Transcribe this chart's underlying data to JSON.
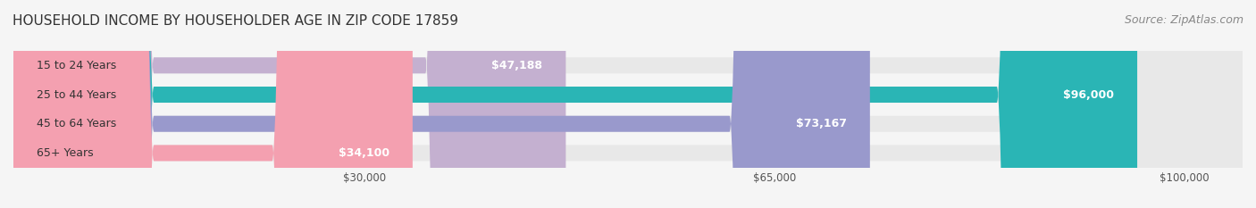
{
  "title": "HOUSEHOLD INCOME BY HOUSEHOLDER AGE IN ZIP CODE 17859",
  "source": "Source: ZipAtlas.com",
  "categories": [
    "15 to 24 Years",
    "25 to 44 Years",
    "45 to 64 Years",
    "65+ Years"
  ],
  "values": [
    47188,
    96000,
    73167,
    34100
  ],
  "bar_colors": [
    "#c4b0d0",
    "#2ab5b5",
    "#9999cc",
    "#f4a0b0"
  ],
  "bar_track_color": "#e8e8e8",
  "value_labels": [
    "$47,188",
    "$96,000",
    "$73,167",
    "$34,100"
  ],
  "label_fontsize": 9,
  "xticks": [
    30000,
    65000,
    100000
  ],
  "xtick_labels": [
    "$30,000",
    "$65,000",
    "$100,000"
  ],
  "xmax": 105000,
  "xmin": 0,
  "background_color": "#f5f5f5",
  "title_fontsize": 11,
  "source_fontsize": 9,
  "category_fontsize": 9,
  "bar_height": 0.55,
  "fig_width": 14.06,
  "fig_height": 2.33
}
